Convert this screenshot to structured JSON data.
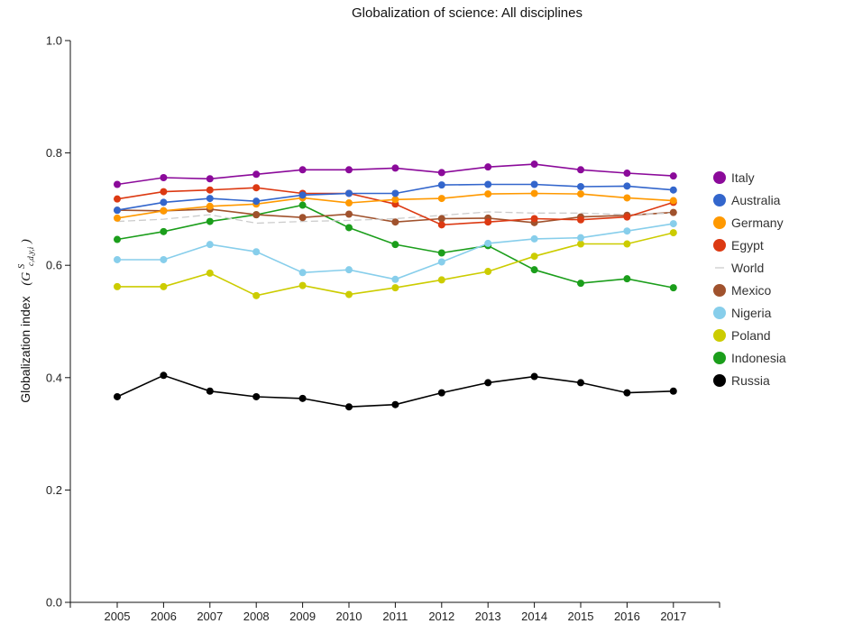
{
  "chart_data": {
    "type": "line",
    "title": "Globalization of science: All disciplines",
    "ylabel": "Globalization index",
    "ylabel_symbol": "(G",
    "ylabel_sup": "S",
    "ylabel_sub": "c,d,y,i",
    "ylabel_close": ")",
    "xlabel": "",
    "ylim": [
      0,
      1
    ],
    "yticks": [
      "0.0",
      "0.2",
      "0.4",
      "0.6",
      "0.8",
      "1.0"
    ],
    "ytick_values": [
      0,
      0.2,
      0.4,
      0.6,
      0.8,
      1.0
    ],
    "x": [
      "2005",
      "2006",
      "2007",
      "2008",
      "2009",
      "2010",
      "2011",
      "2012",
      "2013",
      "2014",
      "2015",
      "2016",
      "2017"
    ],
    "legend_position": "right",
    "grid": false,
    "series": [
      {
        "name": "Italy",
        "color": "#8b0a9a",
        "style": "solid",
        "values": [
          0.744,
          0.756,
          0.754,
          0.762,
          0.77,
          0.77,
          0.773,
          0.765,
          0.775,
          0.78,
          0.77,
          0.764,
          0.759
        ]
      },
      {
        "name": "Australia",
        "color": "#3366cc",
        "style": "solid",
        "values": [
          0.698,
          0.712,
          0.719,
          0.714,
          0.725,
          0.728,
          0.728,
          0.743,
          0.744,
          0.744,
          0.74,
          0.741,
          0.734
        ]
      },
      {
        "name": "Germany",
        "color": "#ff9900",
        "style": "solid",
        "values": [
          0.684,
          0.697,
          0.705,
          0.709,
          0.72,
          0.711,
          0.717,
          0.719,
          0.727,
          0.728,
          0.727,
          0.72,
          0.715
        ]
      },
      {
        "name": "Egypt",
        "color": "#dc3912",
        "style": "solid",
        "values": [
          0.718,
          0.731,
          0.734,
          0.738,
          0.728,
          0.728,
          0.709,
          0.672,
          0.677,
          0.683,
          0.681,
          0.686,
          0.712
        ]
      },
      {
        "name": "World",
        "color": "#cccccc",
        "style": "dashed",
        "values": [
          0.678,
          0.682,
          0.69,
          0.675,
          0.678,
          0.68,
          0.683,
          0.689,
          0.695,
          0.693,
          0.693,
          0.69,
          0.693
        ]
      },
      {
        "name": "Mexico",
        "color": "#a0522d",
        "style": "solid",
        "values": [
          0.698,
          0.697,
          0.7,
          0.69,
          0.685,
          0.691,
          0.677,
          0.683,
          0.684,
          0.676,
          0.686,
          0.689,
          0.694
        ]
      },
      {
        "name": "Nigeria",
        "color": "#87ceeb",
        "style": "solid",
        "values": [
          0.61,
          0.61,
          0.637,
          0.624,
          0.587,
          0.592,
          0.575,
          0.606,
          0.639,
          0.647,
          0.649,
          0.661,
          0.674
        ]
      },
      {
        "name": "Poland",
        "color": "#cccc00",
        "style": "solid",
        "values": [
          0.562,
          0.562,
          0.586,
          0.546,
          0.564,
          0.548,
          0.56,
          0.574,
          0.589,
          0.616,
          0.638,
          0.638,
          0.658
        ]
      },
      {
        "name": "Indonesia",
        "color": "#1b9e1b",
        "style": "solid",
        "values": [
          0.646,
          0.66,
          0.678,
          0.69,
          0.707,
          0.667,
          0.637,
          0.622,
          0.635,
          0.592,
          0.568,
          0.576,
          0.56
        ]
      },
      {
        "name": "Russia",
        "color": "#000000",
        "style": "solid",
        "values": [
          0.366,
          0.404,
          0.376,
          0.366,
          0.363,
          0.348,
          0.352,
          0.373,
          0.391,
          0.402,
          0.391,
          0.373,
          0.376
        ]
      }
    ]
  }
}
